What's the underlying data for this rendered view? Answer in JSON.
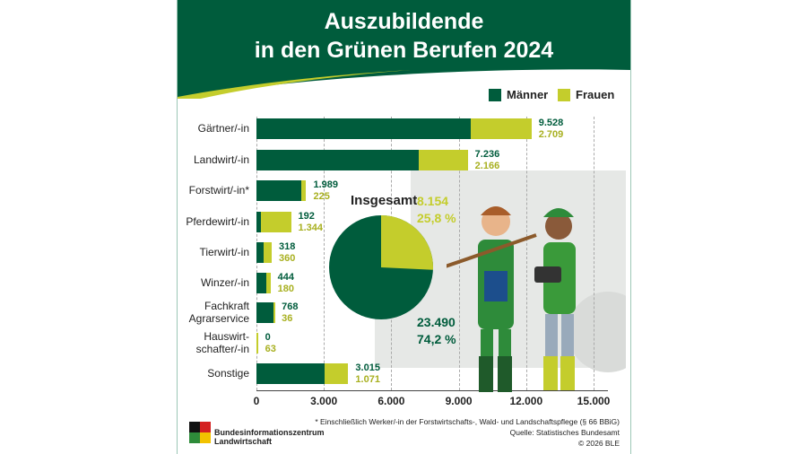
{
  "colors": {
    "men": "#005c3c",
    "women": "#c4cd2c",
    "header": "#005c3c"
  },
  "chart_data": {
    "type": "bar",
    "stacked": true,
    "orientation": "horizontal",
    "title": [
      "Auszubildende",
      "in den Grünen Berufen 2024"
    ],
    "legend": [
      "Männer",
      "Frauen"
    ],
    "legend_position": "top-right",
    "categories": [
      "Gärtner/-in",
      "Landwirt/-in",
      "Forstwirt/-in*",
      "Pferdewirt/-in",
      "Tierwirt/-in",
      "Winzer/-in",
      "Fachkraft Agrarservice",
      "Hauswirt-schafter/-in",
      "Sonstige"
    ],
    "series": [
      {
        "name": "Männer",
        "values": [
          9528,
          7236,
          1989,
          192,
          318,
          444,
          768,
          0,
          3015
        ],
        "labels": [
          "9.528",
          "7.236",
          "1.989",
          "192",
          "318",
          "444",
          "768",
          "0",
          "3.015"
        ]
      },
      {
        "name": "Frauen",
        "values": [
          2709,
          2166,
          225,
          1344,
          360,
          180,
          36,
          63,
          1071
        ],
        "labels": [
          "2.709",
          "2.166",
          "225",
          "1.344",
          "360",
          "180",
          "36",
          "63",
          "1.071"
        ]
      }
    ],
    "xlim": [
      0,
      15000
    ],
    "xticks": [
      0,
      3000,
      6000,
      9000,
      12000,
      15000
    ],
    "xtick_labels": [
      "0",
      "3.000",
      "6.000",
      "9.000",
      "12.000",
      "15.000"
    ],
    "pie": {
      "title": "Insgesamt",
      "women": {
        "value": 8154,
        "label": "8.154",
        "pct": "25,8 %"
      },
      "men": {
        "value": 23490,
        "label": "23.490",
        "pct": "74,2 %"
      }
    }
  },
  "footer": {
    "note": "* Einschließlich Werker/-in der Forstwirtschafts-, Wald- und Landschaftspflege (§ 66 BBiG)",
    "source": "Quelle: Statistisches Bundesamt",
    "copyright": "© 2026 BLE",
    "logo_text": [
      "Bundesinformationszentrum",
      "Landwirtschaft"
    ]
  }
}
